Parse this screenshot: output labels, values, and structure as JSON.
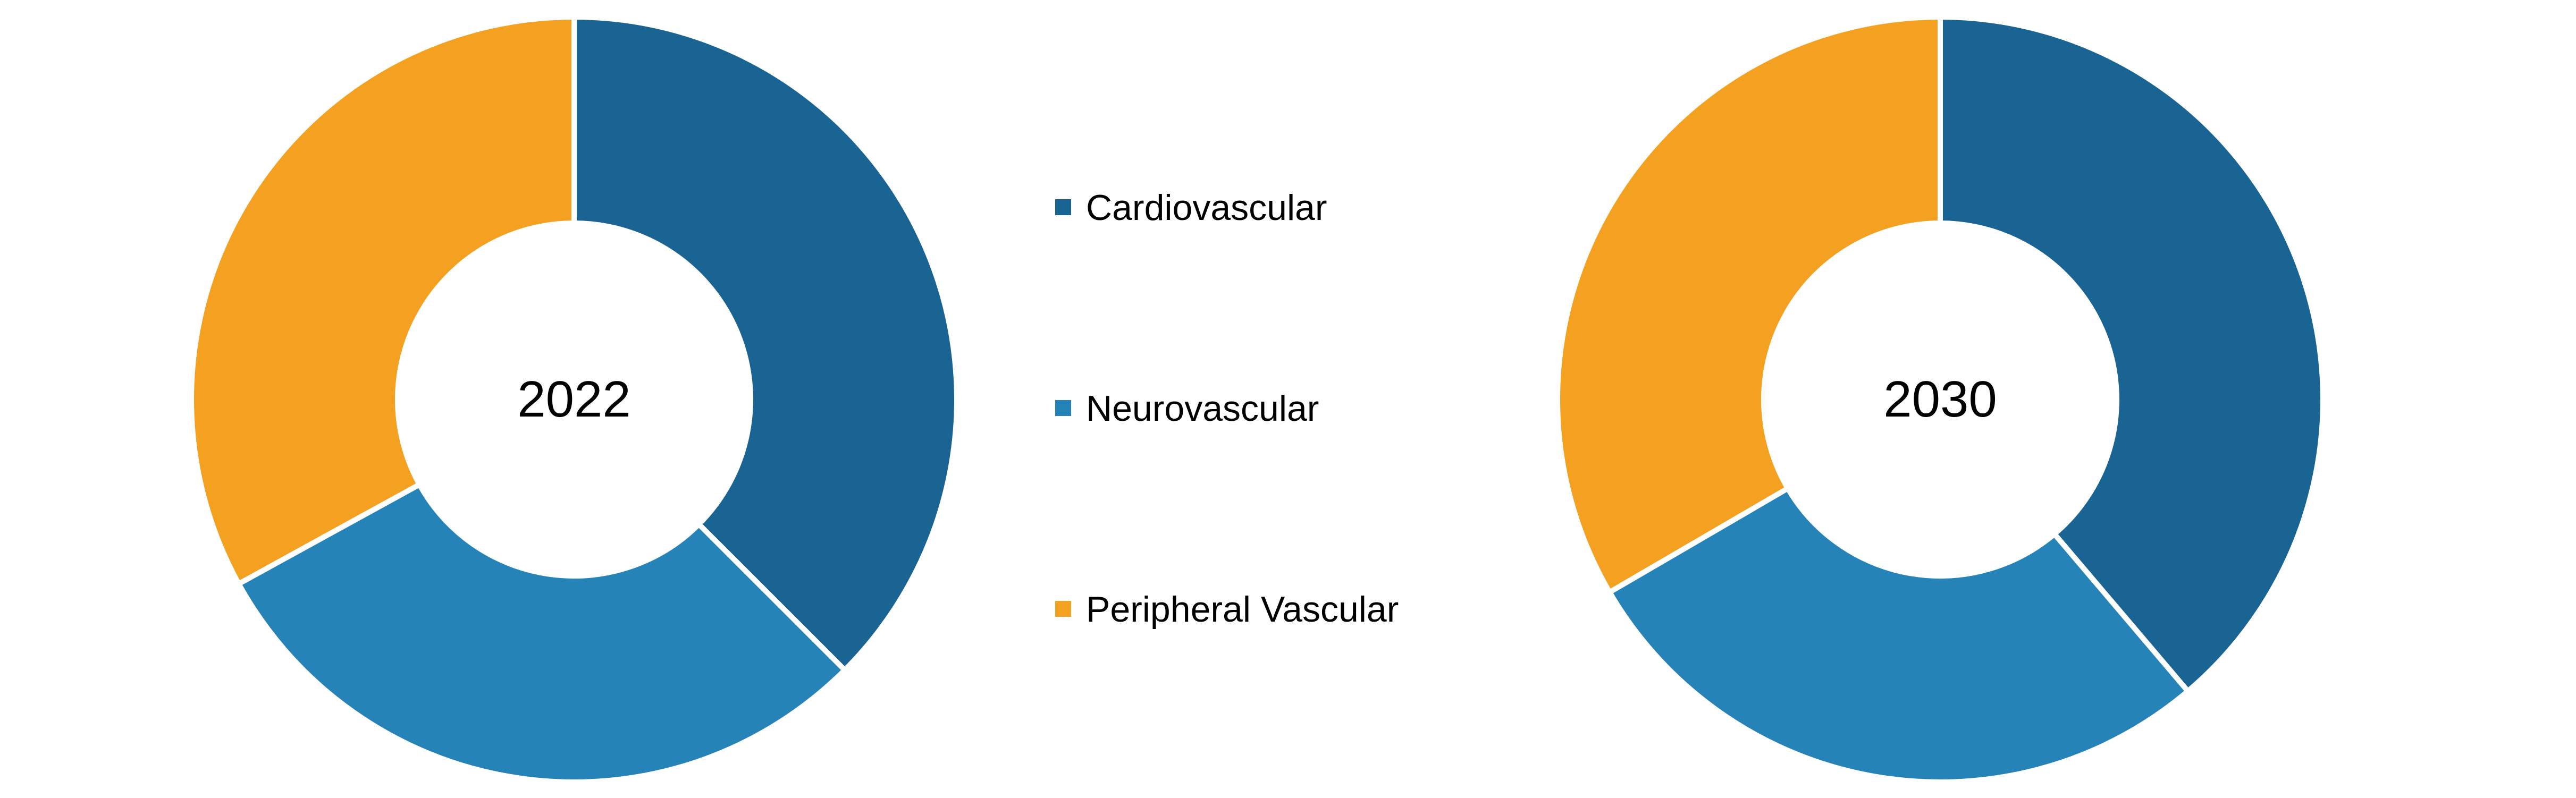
{
  "chart_data": [
    {
      "type": "pie",
      "title": "",
      "center_label": "2022",
      "categories": [
        "Cardiovascular",
        "Neurovascular",
        "Peripheral Vascular"
      ],
      "values": [
        37.5,
        29.5,
        33.0
      ],
      "colors": [
        "#1a6493",
        "#2683b7",
        "#f4a020"
      ]
    },
    {
      "type": "pie",
      "title": "",
      "center_label": "2030",
      "categories": [
        "Cardiovascular",
        "Neurovascular",
        "Peripheral Vascular"
      ],
      "values": [
        38.8,
        27.8,
        33.4
      ],
      "colors": [
        "#1a6493",
        "#2683b7",
        "#f4a020"
      ]
    }
  ],
  "legend": {
    "position": "center",
    "items": [
      {
        "label": "Cardiovascular",
        "color": "#1a6493"
      },
      {
        "label": "Neurovascular",
        "color": "#2683b7"
      },
      {
        "label": "Peripheral Vascular",
        "color": "#f4a020"
      }
    ]
  }
}
